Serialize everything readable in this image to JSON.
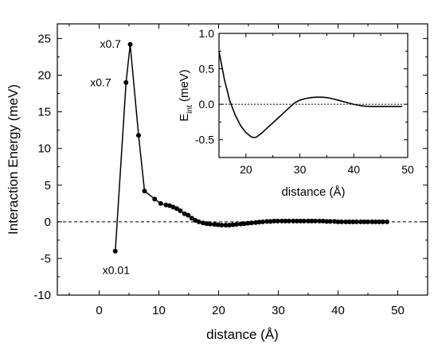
{
  "chart_data": [
    {
      "type": "line",
      "xlabel": "distance (Å)",
      "ylabel": "Interaction Energy (meV)",
      "xlim": [
        -7,
        55
      ],
      "ylim": [
        -10,
        27
      ],
      "xticks": [
        0,
        10,
        20,
        30,
        40,
        50
      ],
      "yticks": [
        -10,
        -5,
        0,
        5,
        10,
        15,
        20,
        25
      ],
      "zero_line": "dashed",
      "marker": "filled-circle",
      "series": [
        {
          "x": [
            2.7,
            4.5,
            5.2,
            6.6,
            7.6,
            9.3,
            10.3,
            11.2,
            11.8,
            12.4,
            13.0,
            13.6,
            14.3,
            14.9,
            15.5,
            16.1,
            16.7,
            17.4,
            18.0,
            18.6,
            19.3,
            19.9,
            20.5,
            21.2,
            21.8,
            22.4,
            23.0,
            23.7,
            24.3,
            24.9,
            25.5,
            26.2,
            26.8,
            27.4,
            28.1,
            28.7,
            29.3,
            29.9,
            30.6,
            31.2,
            31.8,
            32.5,
            33.1,
            33.7,
            34.3,
            35.0,
            35.6,
            36.2,
            36.9,
            37.5,
            38.1,
            38.7,
            39.4,
            40.0,
            40.6,
            41.3,
            41.9,
            42.5,
            43.1,
            43.8,
            44.4,
            45.0,
            45.7,
            46.3,
            46.9,
            47.5,
            48.2
          ],
          "y": [
            -4.0,
            19.0,
            24.2,
            11.8,
            4.2,
            3.1,
            2.5,
            2.3,
            2.2,
            2.0,
            1.8,
            1.5,
            1.1,
            0.9,
            0.5,
            0.2,
            0.0,
            -0.15,
            -0.25,
            -0.3,
            -0.35,
            -0.4,
            -0.45,
            -0.45,
            -0.45,
            -0.4,
            -0.35,
            -0.3,
            -0.25,
            -0.2,
            -0.15,
            -0.1,
            -0.05,
            0.0,
            0.05,
            0.05,
            0.1,
            0.1,
            0.1,
            0.1,
            0.1,
            0.1,
            0.1,
            0.1,
            0.1,
            0.1,
            0.1,
            0.1,
            0.1,
            0.1,
            0.05,
            0.05,
            0.05,
            0.0,
            0.0,
            0.0,
            0.0,
            0.0,
            0.0,
            0.0,
            0.0,
            0.0,
            0.0,
            0.0,
            0.0,
            0.0,
            0.0
          ]
        }
      ],
      "annotations": [
        {
          "text": "x0.7",
          "x": 5.2,
          "y": 24.2
        },
        {
          "text": "x0.7",
          "x": 4.5,
          "y": 19.0
        },
        {
          "text": "x0.01",
          "x": 2.7,
          "y": -4.0
        }
      ]
    },
    {
      "type": "line",
      "xlabel": "distance (Å)",
      "ylabel": "E",
      "ylabel_sub": "int",
      "ylabel_suffix": " (meV)",
      "xlim": [
        15,
        50
      ],
      "ylim": [
        -0.75,
        1.0
      ],
      "xticks": [
        20,
        30,
        40,
        50
      ],
      "yticks": [
        -0.5,
        0.0,
        0.5,
        1.0
      ],
      "ytick_labels": [
        "-0.5",
        "0.0",
        "0.5",
        "1.0"
      ],
      "zero_line": "dotted",
      "series": [
        {
          "x": [
            15,
            16,
            17,
            18,
            19,
            20,
            21,
            21.5,
            22,
            23,
            24,
            25,
            26,
            27,
            28,
            29,
            30,
            31,
            32,
            33,
            34,
            35,
            36,
            37,
            38,
            39,
            40,
            41,
            42,
            43,
            44,
            45,
            46,
            47,
            48,
            49
          ],
          "y": [
            0.75,
            0.35,
            0.05,
            -0.15,
            -0.3,
            -0.4,
            -0.46,
            -0.47,
            -0.46,
            -0.4,
            -0.33,
            -0.26,
            -0.19,
            -0.12,
            -0.05,
            0.02,
            0.06,
            0.08,
            0.095,
            0.1,
            0.1,
            0.095,
            0.08,
            0.06,
            0.04,
            0.02,
            0.0,
            -0.015,
            -0.025,
            -0.03,
            -0.03,
            -0.03,
            -0.03,
            -0.03,
            -0.03,
            -0.03
          ]
        }
      ]
    }
  ]
}
